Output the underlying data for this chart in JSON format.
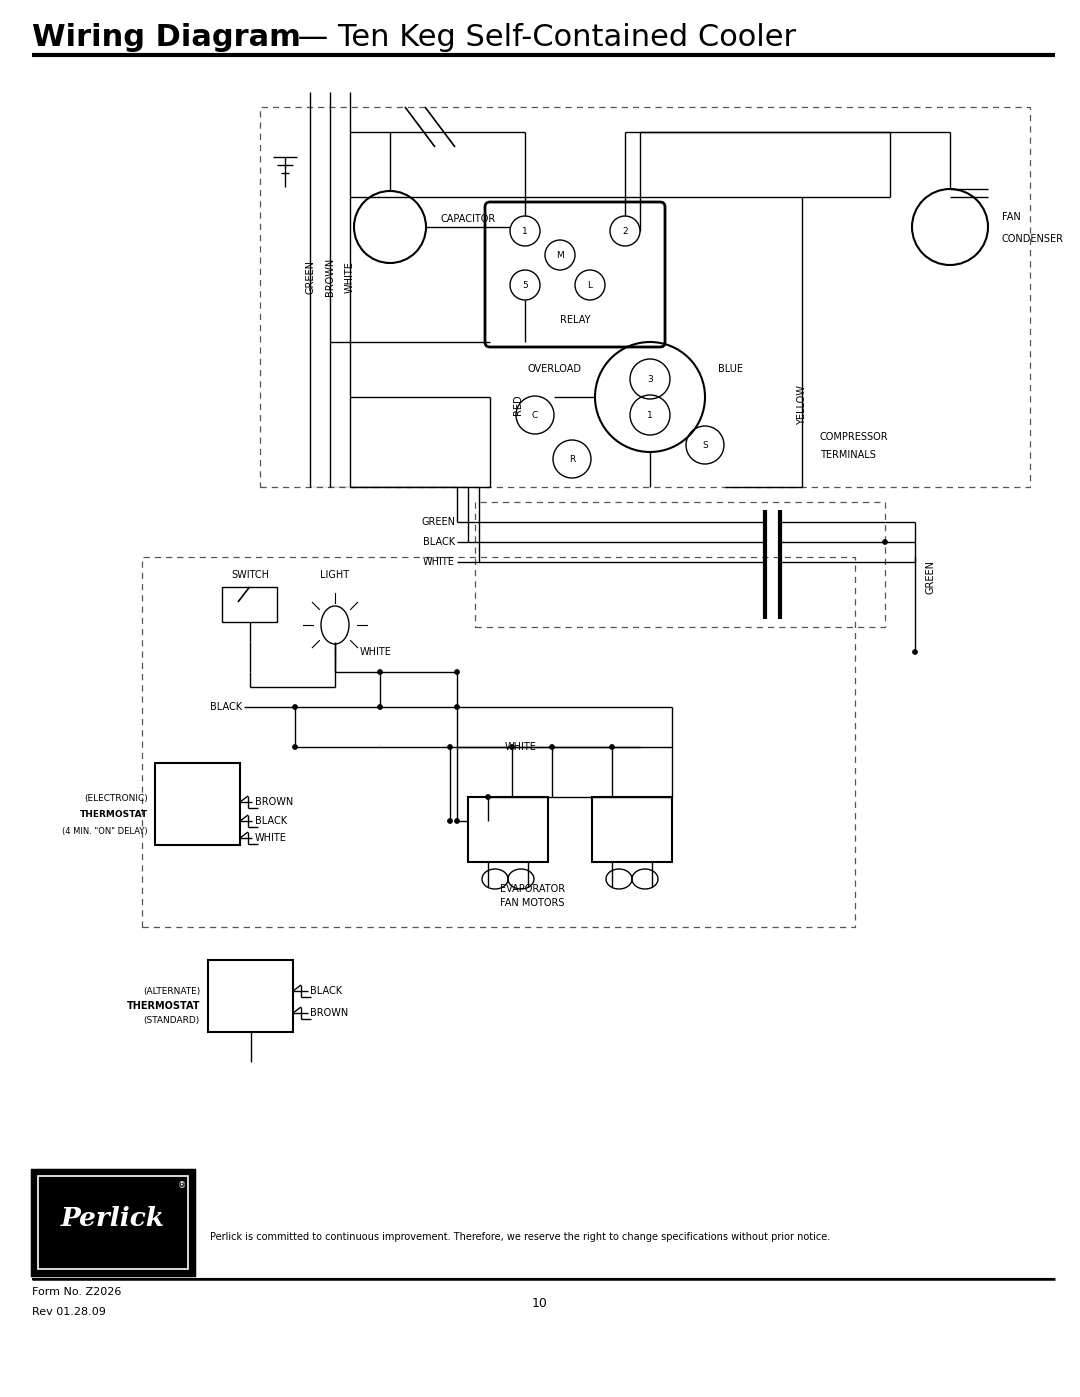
{
  "title_bold": "Wiring Diagram",
  "title_normal": " — Ten Keg Self-Contained Cooler",
  "footer_left1": "Form No. Z2026",
  "footer_left2": "Rev 01.28.09",
  "footer_center": "10",
  "footer_notice": "Perlick is committed to continuous improvement. Therefore, we reserve the right to change specifications without prior notice.",
  "bg_color": "#ffffff",
  "line_color": "#000000"
}
